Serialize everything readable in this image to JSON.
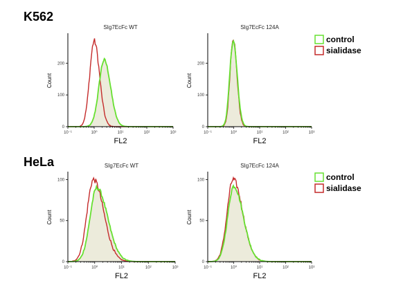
{
  "colors": {
    "control": "#66e030",
    "sialidase": "#c42a2a",
    "fill": "#ecebdb"
  },
  "rows": [
    {
      "label": "K562"
    },
    {
      "label": "HeLa"
    }
  ],
  "chart_data": [
    {
      "type": "area",
      "title": "SIg7EcFc WT",
      "xlabel": "FL2",
      "ylabel": "Count",
      "x_scale": "log",
      "xlim": [
        0.1,
        1000
      ],
      "ylim": [
        0,
        290
      ],
      "yticks": [
        "0",
        "100",
        "200"
      ],
      "xticks": [
        "10⁻¹",
        "10⁰",
        "10¹",
        "10²",
        "10³"
      ],
      "series": [
        {
          "name": "control",
          "peak_x": 2.4,
          "peak_y": 210,
          "sigma_log": 0.2,
          "skew": 1.2
        },
        {
          "name": "sialidase",
          "peak_x": 1.0,
          "peak_y": 270,
          "sigma_log": 0.17,
          "skew": 1.2
        }
      ]
    },
    {
      "type": "area",
      "title": "SIg7EcFc 124A",
      "xlabel": "FL2",
      "ylabel": "Count",
      "x_scale": "log",
      "xlim": [
        0.1,
        1000
      ],
      "ylim": [
        0,
        290
      ],
      "yticks": [
        "0",
        "100",
        "200"
      ],
      "xticks": [
        "10⁻¹",
        "10⁰",
        "10¹",
        "10²",
        "10³"
      ],
      "series": [
        {
          "name": "control",
          "peak_x": 0.95,
          "peak_y": 270,
          "sigma_log": 0.13,
          "skew": 1.2
        },
        {
          "name": "sialidase",
          "peak_x": 0.95,
          "peak_y": 280,
          "sigma_log": 0.12,
          "skew": 1.2
        }
      ]
    },
    {
      "type": "area",
      "title": "SIg7EcFc WT",
      "xlabel": "FL2",
      "ylabel": "Count",
      "x_scale": "log",
      "xlim": [
        0.1,
        1000
      ],
      "ylim": [
        0,
        108
      ],
      "yticks": [
        "0",
        "50",
        "100"
      ],
      "xticks": [
        "10⁻¹",
        "10⁰",
        "10¹",
        "10²",
        "10³"
      ],
      "series": [
        {
          "name": "control",
          "peak_x": 1.2,
          "peak_y": 90,
          "sigma_log": 0.25,
          "skew": 1.6
        },
        {
          "name": "sialidase",
          "peak_x": 0.9,
          "peak_y": 100,
          "sigma_log": 0.24,
          "skew": 1.6
        }
      ]
    },
    {
      "type": "area",
      "title": "SIg7EcFc 124A",
      "xlabel": "FL2",
      "ylabel": "Count",
      "x_scale": "log",
      "xlim": [
        0.1,
        1000
      ],
      "ylim": [
        0,
        108
      ],
      "yticks": [
        "0",
        "50",
        "100"
      ],
      "xticks": [
        "10⁻¹",
        "10⁰",
        "10¹",
        "10²",
        "10³"
      ],
      "series": [
        {
          "name": "control",
          "peak_x": 1.0,
          "peak_y": 92,
          "sigma_log": 0.23,
          "skew": 1.6
        },
        {
          "name": "sialidase",
          "peak_x": 0.95,
          "peak_y": 100,
          "sigma_log": 0.23,
          "skew": 1.6
        }
      ]
    }
  ],
  "legend": [
    {
      "label": "control",
      "series": "control"
    },
    {
      "label": "sialidase",
      "series": "sialidase"
    }
  ]
}
